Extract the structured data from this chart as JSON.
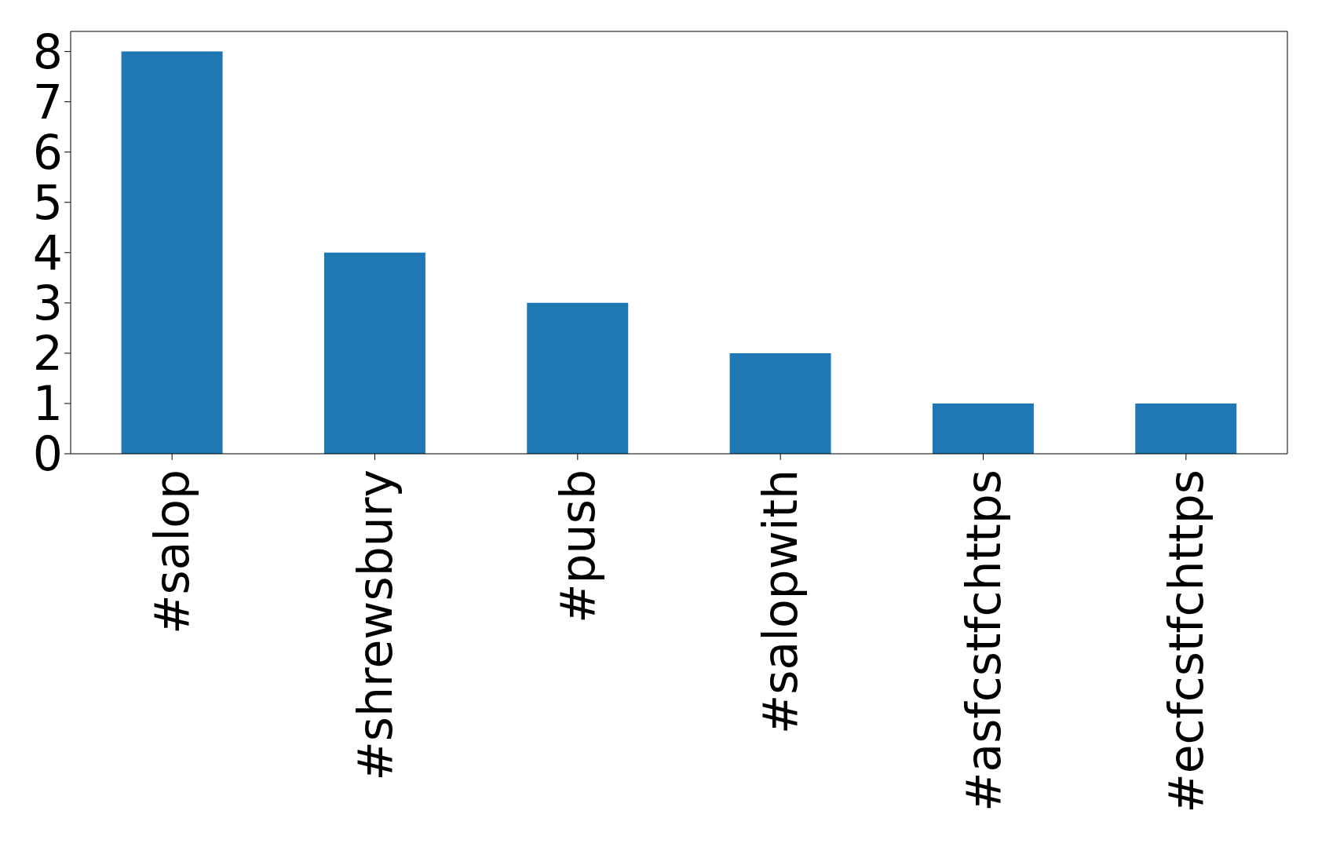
{
  "chart_data": {
    "type": "bar",
    "categories": [
      "#salop",
      "#shrewsbury",
      "#pusb",
      "#salopwith",
      "#asfcstfchttps",
      "#ecfcstfchttps"
    ],
    "values": [
      8,
      4,
      3,
      2,
      1,
      1
    ],
    "color": "#1f77b4",
    "ylim": [
      0,
      8.4
    ],
    "yticks": [
      0,
      1,
      2,
      3,
      4,
      5,
      6,
      7,
      8
    ],
    "grid": false
  }
}
